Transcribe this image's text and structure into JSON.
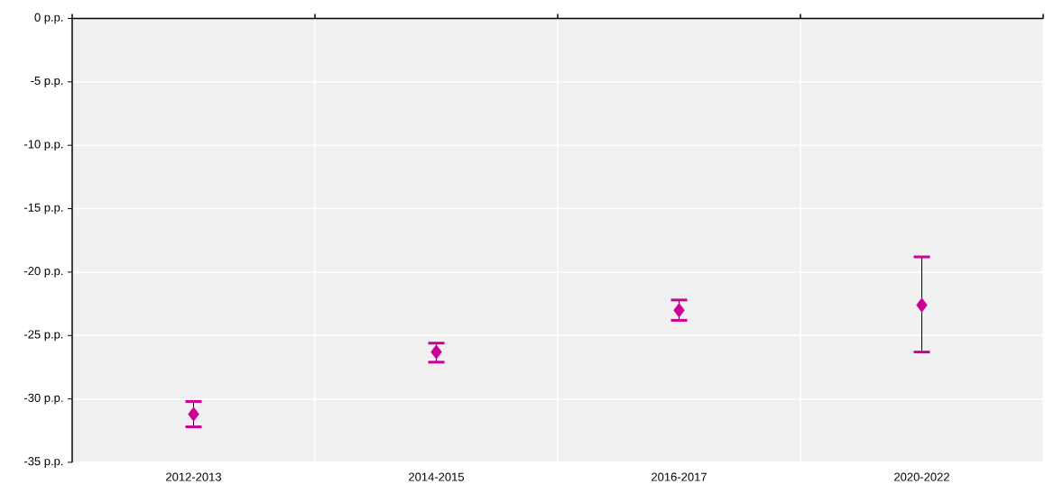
{
  "chart_data": {
    "type": "scatter",
    "categories": [
      "2012-2013",
      "2014-2015",
      "2016-2017",
      "2020-2022"
    ],
    "series": [
      {
        "color": "#cc0099",
        "values": [
          -31.2,
          -26.3,
          -23.0,
          -22.6
        ],
        "errors": [
          [
            -32.2,
            -30.2
          ],
          [
            -27.1,
            -25.6
          ],
          [
            -23.8,
            -22.2
          ],
          [
            -26.3,
            -18.8
          ]
        ]
      }
    ],
    "marker": "diamond",
    "grid": true,
    "ylim": [
      -35,
      0
    ],
    "yticks": [
      {
        "value": 0,
        "label": "0 p.p."
      },
      {
        "value": -5,
        "label": "-5 p.p."
      },
      {
        "value": -10,
        "label": "-10 p.p."
      },
      {
        "value": -15,
        "label": "-15 p.p."
      },
      {
        "value": -20,
        "label": "-20 p.p."
      },
      {
        "value": -25,
        "label": "-25 p.p."
      },
      {
        "value": -30,
        "label": "-30 p.p."
      },
      {
        "value": -35,
        "label": "-35 p.p."
      }
    ]
  }
}
